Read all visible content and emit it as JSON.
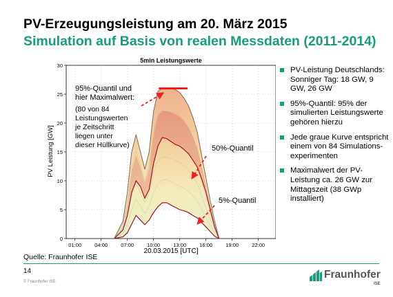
{
  "slide": {
    "title": "PV-Erzeugungsleistung am 20. März 2015",
    "subtitle": "Simulation auf Basis von realen Messdaten (2011-2014)",
    "source": "Quelle: Fraunhofer ISE",
    "page_number": "14",
    "copyright": "© Fraunhofer ISE",
    "logo_text": "Fraunhofer",
    "logo_sub": "ISE",
    "accent_color": "#179c7d",
    "bullets": [
      "PV-Leistung Deutschlands: Sonniger Tag: 18 GW, 9 GW, 26 GW",
      "95%-Quantil: 95% der simulierten Leistungswerte gehören hierzu",
      "Jede graue Kurve entspricht einem von 84 Simulations-experimenten",
      "Maximalwert der PV-Leistung ca. 26 GW zur Mittagszeit (38 GWp installiert)"
    ]
  },
  "chart_data": {
    "type": "area",
    "title": "5min Leistungswerte",
    "xlabel": "20.03.2015 [UTC]",
    "ylabel": "PV Leistung [GW]",
    "x_ticks": [
      "01:00",
      "04:00",
      "07:00",
      "10:00",
      "13:00",
      "16:00",
      "19:00",
      "22:00"
    ],
    "y_ticks": [
      0,
      5,
      10,
      15,
      20,
      25,
      30
    ],
    "xlim_hours": [
      0,
      24
    ],
    "ylim": [
      0,
      30
    ],
    "x_hours": [
      5.5,
      6.5,
      7.0,
      7.5,
      8.0,
      8.5,
      9.0,
      9.5,
      10.0,
      10.5,
      11.0,
      11.5,
      12.0,
      12.5,
      13.0,
      13.5,
      14.0,
      14.5,
      15.0,
      15.5,
      16.0,
      16.5,
      17.0,
      17.5
    ],
    "series": [
      {
        "name": "95%-Quantil",
        "values": [
          0,
          3,
          8,
          15,
          18,
          15,
          12,
          15,
          22,
          25.5,
          26,
          26,
          26,
          25.8,
          25.3,
          24.3,
          23,
          21,
          18.5,
          14.5,
          10.5,
          6.5,
          3,
          0
        ]
      },
      {
        "name": "50%-Quantil",
        "values": [
          0,
          1.5,
          4,
          8,
          10,
          9,
          7,
          8.5,
          13,
          16,
          17.5,
          17.3,
          16.8,
          16.3,
          16,
          15.4,
          14.7,
          13.6,
          12.4,
          10.4,
          8,
          5,
          2,
          0
        ]
      },
      {
        "name": "5%-Quantil",
        "values": [
          0,
          0.3,
          1,
          2.5,
          4,
          3.2,
          2.4,
          3.2,
          4.5,
          5.5,
          6.2,
          6.2,
          5.8,
          5.4,
          5,
          4.8,
          4.5,
          4,
          3.6,
          2.8,
          2,
          1.2,
          0.4,
          0
        ]
      }
    ],
    "max_value": 26,
    "annotations": [
      "95%-Quantil und hier Maximalwert:",
      "(80 von 84 Leistungswerten je Zeitschritt liegen unter dieser Hüllkurve)",
      "50%-Quantil",
      "5%-Quantil"
    ],
    "colors": {
      "max_line": "#ff0000",
      "quantile_line": "#a01428",
      "arrow": "#ee2222"
    }
  }
}
